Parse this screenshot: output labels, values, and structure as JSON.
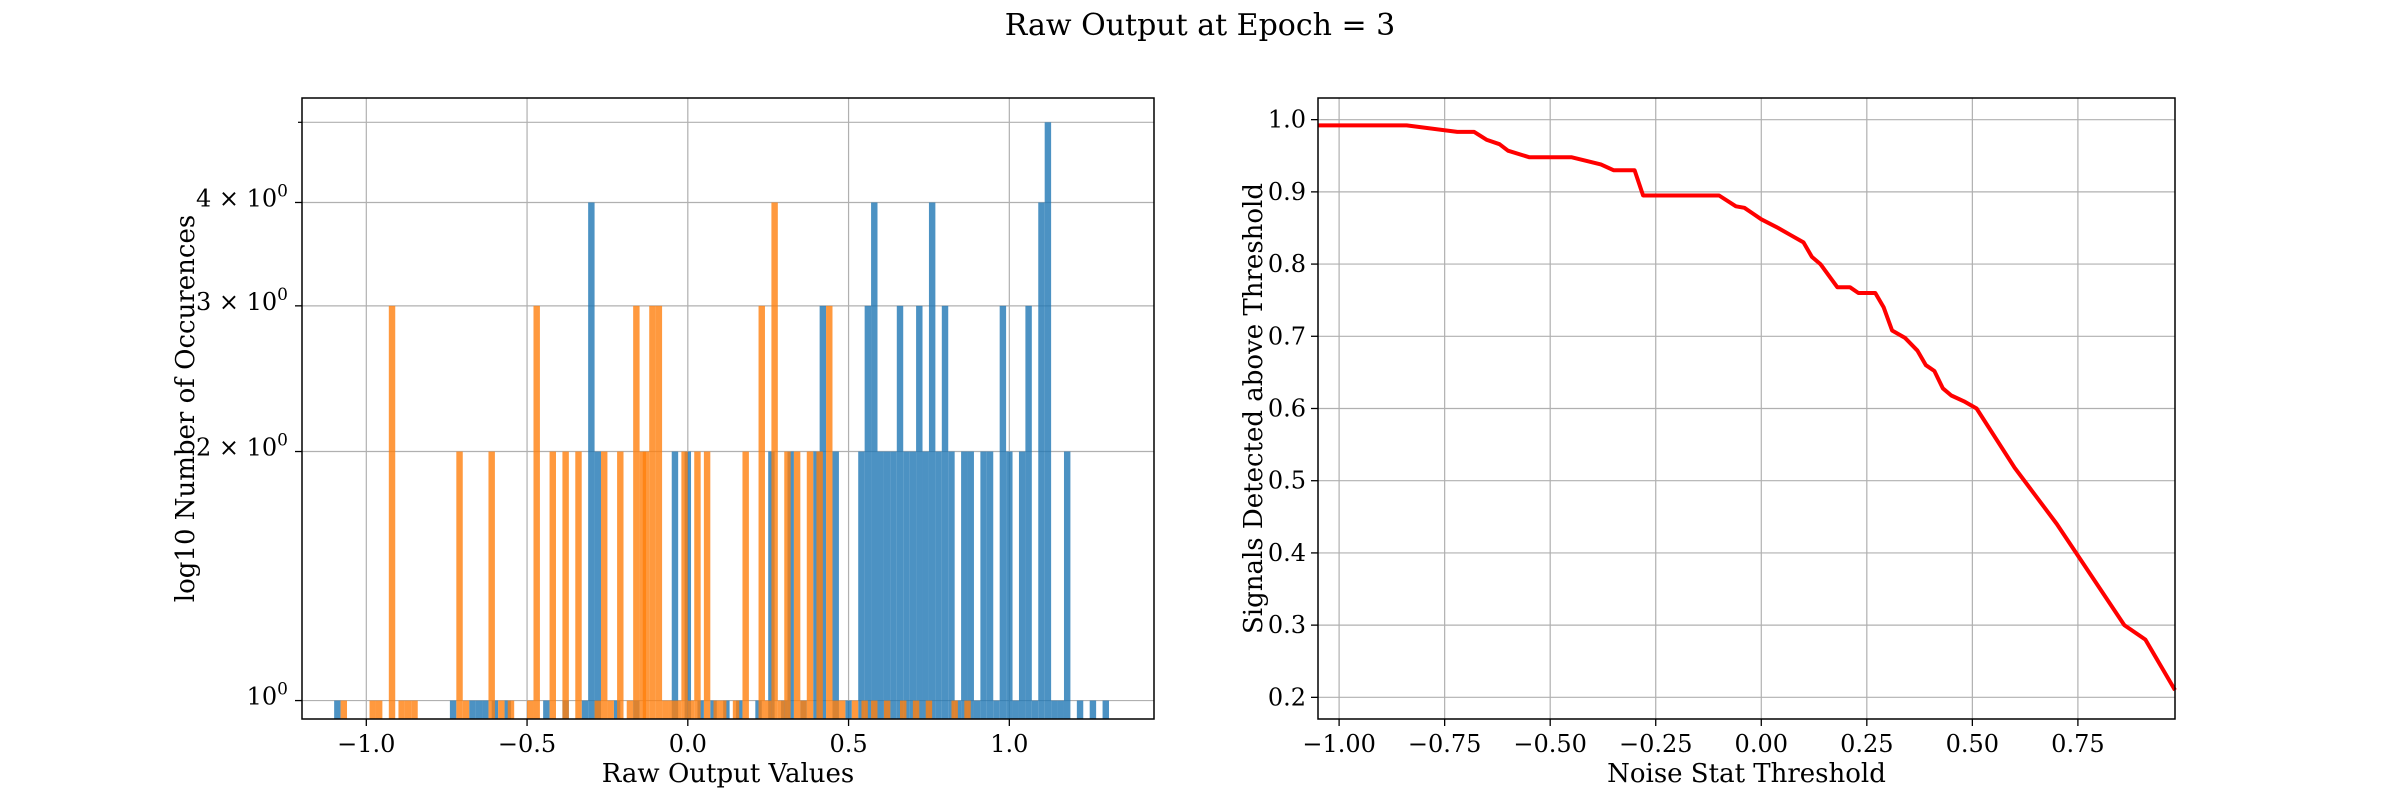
{
  "figure": {
    "title": "Raw Output at Epoch = 3"
  },
  "chart_data": [
    {
      "type": "bar",
      "subtype": "histogram",
      "xlabel": "Raw Output Values",
      "ylabel": "log10 Number of Occurences",
      "yscale": "log",
      "xlim": [
        -1.2,
        1.45
      ],
      "ylim": [
        0.95,
        5.35
      ],
      "grid": true,
      "xticks": [
        -1.0,
        -0.5,
        0.0,
        0.5,
        1.0
      ],
      "xtick_labels": [
        "−1.0",
        "−0.5",
        "0.0",
        "0.5",
        "1.0"
      ],
      "yticks": [
        1,
        2,
        3,
        4
      ],
      "ytick_bases": [
        "10",
        "2 × 10",
        "3 × 10",
        "4 × 10"
      ],
      "ytick_exponent": "0",
      "series": [
        {
          "color": "#1f77b4",
          "bin_width": 0.02,
          "bars": [
            [
              -1.09,
              1
            ],
            [
              -0.73,
              1
            ],
            [
              -0.67,
              1
            ],
            [
              -0.65,
              1
            ],
            [
              -0.63,
              1
            ],
            [
              -0.6,
              1
            ],
            [
              -0.56,
              1
            ],
            [
              -0.44,
              1
            ],
            [
              -0.38,
              1
            ],
            [
              -0.32,
              1
            ],
            [
              -0.3,
              4
            ],
            [
              -0.28,
              2
            ],
            [
              -0.22,
              1
            ],
            [
              -0.16,
              1
            ],
            [
              -0.04,
              2
            ],
            [
              0.0,
              2
            ],
            [
              0.04,
              1
            ],
            [
              0.08,
              1
            ],
            [
              0.12,
              1
            ],
            [
              0.16,
              1
            ],
            [
              0.22,
              1
            ],
            [
              0.26,
              2
            ],
            [
              0.3,
              1
            ],
            [
              0.32,
              2
            ],
            [
              0.36,
              1
            ],
            [
              0.4,
              2
            ],
            [
              0.42,
              3
            ],
            [
              0.46,
              2
            ],
            [
              0.5,
              1
            ],
            [
              0.54,
              2
            ],
            [
              0.56,
              3
            ],
            [
              0.58,
              4
            ],
            [
              0.6,
              2
            ],
            [
              0.62,
              2
            ],
            [
              0.64,
              2
            ],
            [
              0.66,
              3
            ],
            [
              0.68,
              2
            ],
            [
              0.7,
              2
            ],
            [
              0.72,
              3
            ],
            [
              0.74,
              2
            ],
            [
              0.76,
              4
            ],
            [
              0.78,
              2
            ],
            [
              0.8,
              3
            ],
            [
              0.82,
              2
            ],
            [
              0.84,
              1
            ],
            [
              0.86,
              2
            ],
            [
              0.88,
              2
            ],
            [
              0.9,
              1
            ],
            [
              0.92,
              2
            ],
            [
              0.94,
              2
            ],
            [
              0.96,
              1
            ],
            [
              0.98,
              3
            ],
            [
              1.0,
              2
            ],
            [
              1.02,
              1
            ],
            [
              1.04,
              2
            ],
            [
              1.06,
              3
            ],
            [
              1.08,
              1
            ],
            [
              1.1,
              4
            ],
            [
              1.12,
              5
            ],
            [
              1.14,
              1
            ],
            [
              1.16,
              1
            ],
            [
              1.18,
              2
            ],
            [
              1.22,
              1
            ],
            [
              1.26,
              1
            ],
            [
              1.3,
              1
            ]
          ]
        },
        {
          "color": "#ff7f0e",
          "bin_width": 0.02,
          "bars": [
            [
              -1.07,
              1
            ],
            [
              -0.98,
              1
            ],
            [
              -0.96,
              1
            ],
            [
              -0.92,
              3
            ],
            [
              -0.89,
              1
            ],
            [
              -0.87,
              1
            ],
            [
              -0.85,
              1
            ],
            [
              -0.71,
              2
            ],
            [
              -0.69,
              1
            ],
            [
              -0.61,
              2
            ],
            [
              -0.58,
              1
            ],
            [
              -0.55,
              1
            ],
            [
              -0.49,
              1
            ],
            [
              -0.47,
              3
            ],
            [
              -0.42,
              2
            ],
            [
              -0.38,
              2
            ],
            [
              -0.34,
              2
            ],
            [
              -0.28,
              1
            ],
            [
              -0.26,
              2
            ],
            [
              -0.24,
              1
            ],
            [
              -0.21,
              2
            ],
            [
              -0.18,
              1
            ],
            [
              -0.16,
              3
            ],
            [
              -0.14,
              2
            ],
            [
              -0.13,
              2
            ],
            [
              -0.11,
              3
            ],
            [
              -0.09,
              3
            ],
            [
              -0.07,
              1
            ],
            [
              -0.05,
              1
            ],
            [
              -0.03,
              1
            ],
            [
              -0.01,
              2
            ],
            [
              0.01,
              1
            ],
            [
              0.03,
              2
            ],
            [
              0.06,
              2
            ],
            [
              0.09,
              1
            ],
            [
              0.11,
              1
            ],
            [
              0.15,
              1
            ],
            [
              0.18,
              2
            ],
            [
              0.23,
              3
            ],
            [
              0.25,
              1
            ],
            [
              0.27,
              4
            ],
            [
              0.29,
              1
            ],
            [
              0.31,
              2
            ],
            [
              0.34,
              2
            ],
            [
              0.36,
              1
            ],
            [
              0.38,
              2
            ],
            [
              0.41,
              2
            ],
            [
              0.44,
              3
            ],
            [
              0.46,
              1
            ],
            [
              0.48,
              1
            ],
            [
              0.52,
              1
            ],
            [
              0.55,
              1
            ],
            [
              0.58,
              1
            ],
            [
              0.62,
              1
            ],
            [
              0.67,
              1
            ],
            [
              0.71,
              1
            ],
            [
              0.75,
              1
            ],
            [
              0.83,
              1
            ],
            [
              0.87,
              1
            ]
          ]
        }
      ]
    },
    {
      "type": "line",
      "xlabel": "Noise Stat Threshold",
      "ylabel": "Signals Detected above Threshold",
      "xlim": [
        -1.05,
        0.98
      ],
      "ylim": [
        0.17,
        1.03
      ],
      "grid": true,
      "xticks": [
        -1.0,
        -0.75,
        -0.5,
        -0.25,
        0.0,
        0.25,
        0.5,
        0.75
      ],
      "xtick_labels": [
        "−1.00",
        "−0.75",
        "−0.50",
        "−0.25",
        "0.00",
        "0.25",
        "0.50",
        "0.75"
      ],
      "yticks": [
        0.2,
        0.3,
        0.4,
        0.5,
        0.6,
        0.7,
        0.8,
        0.9,
        1.0
      ],
      "ytick_labels": [
        "0.2",
        "0.3",
        "0.4",
        "0.5",
        "0.6",
        "0.7",
        "0.8",
        "0.9",
        "1.0"
      ],
      "series": [
        {
          "color": "#ff0000",
          "x": [
            -1.05,
            -0.84,
            -0.72,
            -0.68,
            -0.65,
            -0.62,
            -0.6,
            -0.55,
            -0.45,
            -0.38,
            -0.35,
            -0.3,
            -0.28,
            -0.1,
            -0.06,
            -0.04,
            -0.02,
            0.0,
            0.04,
            0.07,
            0.1,
            0.12,
            0.14,
            0.18,
            0.21,
            0.23,
            0.27,
            0.29,
            0.31,
            0.34,
            0.37,
            0.39,
            0.41,
            0.43,
            0.45,
            0.48,
            0.51,
            0.6,
            0.7,
            0.78,
            0.86,
            0.91,
            0.98
          ],
          "y": [
            0.992,
            0.992,
            0.983,
            0.983,
            0.972,
            0.966,
            0.957,
            0.948,
            0.948,
            0.938,
            0.93,
            0.93,
            0.895,
            0.895,
            0.88,
            0.878,
            0.87,
            0.862,
            0.85,
            0.84,
            0.83,
            0.81,
            0.8,
            0.768,
            0.768,
            0.76,
            0.76,
            0.74,
            0.708,
            0.698,
            0.68,
            0.66,
            0.652,
            0.628,
            0.618,
            0.61,
            0.6,
            0.518,
            0.44,
            0.37,
            0.3,
            0.28,
            0.21
          ]
        }
      ]
    }
  ]
}
